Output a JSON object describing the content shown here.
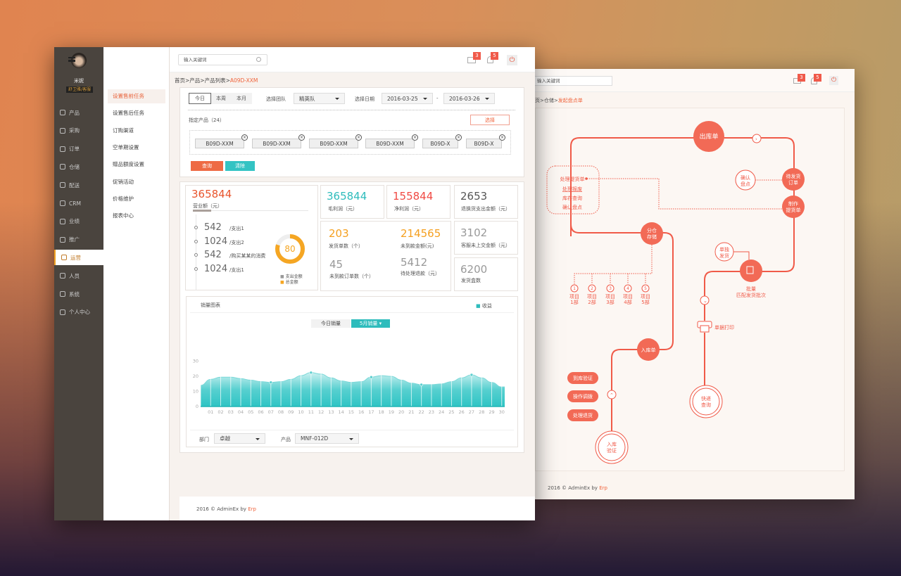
{
  "colors": {
    "accent": "#f05a48",
    "teal": "#2ec4c4",
    "orange": "#f5a623",
    "sidebar": "#4a443e"
  },
  "back_window": {
    "search_placeholder": "输入关键词",
    "mail_count": "3",
    "bell_count": "5",
    "breadcrumb": {
      "prefix": "页>仓储>",
      "current": "发起盘点单"
    },
    "flow": {
      "out_order": "出库单",
      "pending_ship": [
        "待发货",
        "订单"
      ],
      "make_pickup": [
        "制作",
        "提货单"
      ],
      "confirm_count": [
        "确认",
        "盘点"
      ],
      "menu": [
        "处理提货单",
        "处理报废",
        "库存查询",
        "确认盘点"
      ],
      "warehouse": [
        "分仓",
        "存储"
      ],
      "projects": [
        {
          "n": "1",
          "l": [
            "项目",
            "1部"
          ]
        },
        {
          "n": "2",
          "l": [
            "项目",
            "2部"
          ]
        },
        {
          "n": "3",
          "l": [
            "项目",
            "3部"
          ]
        },
        {
          "n": "4",
          "l": [
            "项目",
            "4部"
          ]
        },
        {
          "n": "5",
          "l": [
            "项目",
            "5部"
          ]
        }
      ],
      "single_ship": [
        "单独",
        "发货"
      ],
      "batch": [
        "批量",
        "匹配发货批次"
      ],
      "print": "单据打印",
      "express": [
        "快递",
        "查询"
      ],
      "in_order": "入库单",
      "actions": [
        "到库验证",
        "操作调拨",
        "处理退货"
      ],
      "in_verify": [
        "入库",
        "验证"
      ]
    },
    "footer": {
      "text": "2016 © AdminEx by ",
      "link": "Erp"
    }
  },
  "user": {
    "name": "米妮",
    "role": "舒卫雅/客服"
  },
  "sidebar": {
    "items": [
      {
        "label": "产品",
        "icon": "product-icon"
      },
      {
        "label": "采购",
        "icon": "cart-icon"
      },
      {
        "label": "订单",
        "icon": "order-icon"
      },
      {
        "label": "仓储",
        "icon": "warehouse-icon"
      },
      {
        "label": "配送",
        "icon": "delivery-icon"
      },
      {
        "label": "CRM",
        "icon": "crm-icon"
      },
      {
        "label": "业绩",
        "icon": "performance-icon"
      },
      {
        "label": "推广",
        "icon": "promotion-icon"
      },
      {
        "label": "运营",
        "icon": "operations-icon",
        "active": true
      },
      {
        "label": "人员",
        "icon": "staff-icon"
      },
      {
        "label": "系统",
        "icon": "gear-icon"
      },
      {
        "label": "个人中心",
        "icon": "user-icon"
      }
    ]
  },
  "submenu": {
    "items": [
      "设置售前任务",
      "设置售后任务",
      "订购渠道",
      "空单期设置",
      "赠品额度设置",
      "促销活动",
      "价格维护",
      "报表中心"
    ]
  },
  "header": {
    "search_placeholder": "输入关键词",
    "mail_count": "3",
    "bell_count": "5"
  },
  "breadcrumb": {
    "prefix": "首页>产品>产品列表>",
    "current": "A09D-XXM"
  },
  "filters": {
    "periods": [
      "今日",
      "本周",
      "本月"
    ],
    "team_label": "选择团队",
    "team": "精英队",
    "date_label": "选择日期",
    "date_from": "2016-03-25",
    "date_sep": "-",
    "date_to": "2016-03-26",
    "products_label": "指定产品（24）",
    "choose": "选择",
    "tags": [
      "B09D-XXM",
      "B09D-XXM",
      "B09D-XXM",
      "B09D-XXM",
      "B09D-X",
      "B09D-X"
    ],
    "query": "查询",
    "clear": "清除"
  },
  "stats": {
    "revenue": {
      "value": "365844",
      "label": "营业额（元）"
    },
    "breakdown": [
      {
        "v": "542",
        "l": "/支出1"
      },
      {
        "v": "1024",
        "l": "/支出2"
      },
      {
        "v": "542",
        "l": "/购买某某的消费"
      },
      {
        "v": "1024",
        "l": "/支出1"
      }
    ],
    "donut": {
      "value": "80",
      "percent": 80,
      "legend": [
        "支出金额",
        "总金额"
      ]
    },
    "gross": {
      "value": "365844",
      "label": "毛利润（元）"
    },
    "net": {
      "value": "155844",
      "label": "净利润（元）"
    },
    "refund": {
      "value": "2653",
      "label": "退换货支出金额（元）"
    },
    "shipped": {
      "value": "203",
      "label": "发货单数（个）"
    },
    "unpaid_amount": {
      "value": "214565",
      "label": "未到款金额(元)"
    },
    "unpaid_orders": {
      "value": "45",
      "label": "未到款订单数（个）"
    },
    "pending_refund": {
      "value": "5412",
      "label": "待处理退款（元）"
    },
    "cs_unpaid": {
      "value": "3102",
      "label": "客服未上交金额（元）"
    },
    "boxes": {
      "value": "6200",
      "label": "发货盒数"
    }
  },
  "chart_panel": {
    "title": "销量图表",
    "tabs": [
      "今日销量",
      "5月销量"
    ],
    "dept_label": "部门",
    "dept": "卓越",
    "product_label": "产品",
    "product": "MNF-012D"
  },
  "chart_data": {
    "type": "area",
    "title": "",
    "legend": [
      "收益"
    ],
    "legend_placement": "top-right",
    "grid": "vertical",
    "categories": [
      "01",
      "02",
      "03",
      "04",
      "05",
      "06",
      "07",
      "08",
      "09",
      "10",
      "11",
      "12",
      "13",
      "14",
      "15",
      "16",
      "17",
      "18",
      "19",
      "20",
      "21",
      "22",
      "23",
      "24",
      "25",
      "26",
      "27",
      "28",
      "29",
      "30"
    ],
    "series": [
      {
        "name": "收益",
        "values": [
          18,
          19.5,
          19.5,
          18.5,
          17.5,
          16.5,
          16,
          16.5,
          18,
          20.5,
          22.5,
          21.5,
          19,
          17,
          16,
          16.5,
          19.5,
          20.5,
          20,
          17.5,
          15.5,
          14.5,
          14.5,
          15,
          16.5,
          19,
          21,
          19,
          16,
          13
        ]
      }
    ],
    "markers": [
      "07",
      "11",
      "17",
      "22",
      "27"
    ],
    "yticks": [
      0,
      10,
      20,
      30
    ],
    "ylim": [
      0,
      42
    ]
  },
  "footer": {
    "text": "2016 © AdminEx by ",
    "link": "Erp"
  }
}
